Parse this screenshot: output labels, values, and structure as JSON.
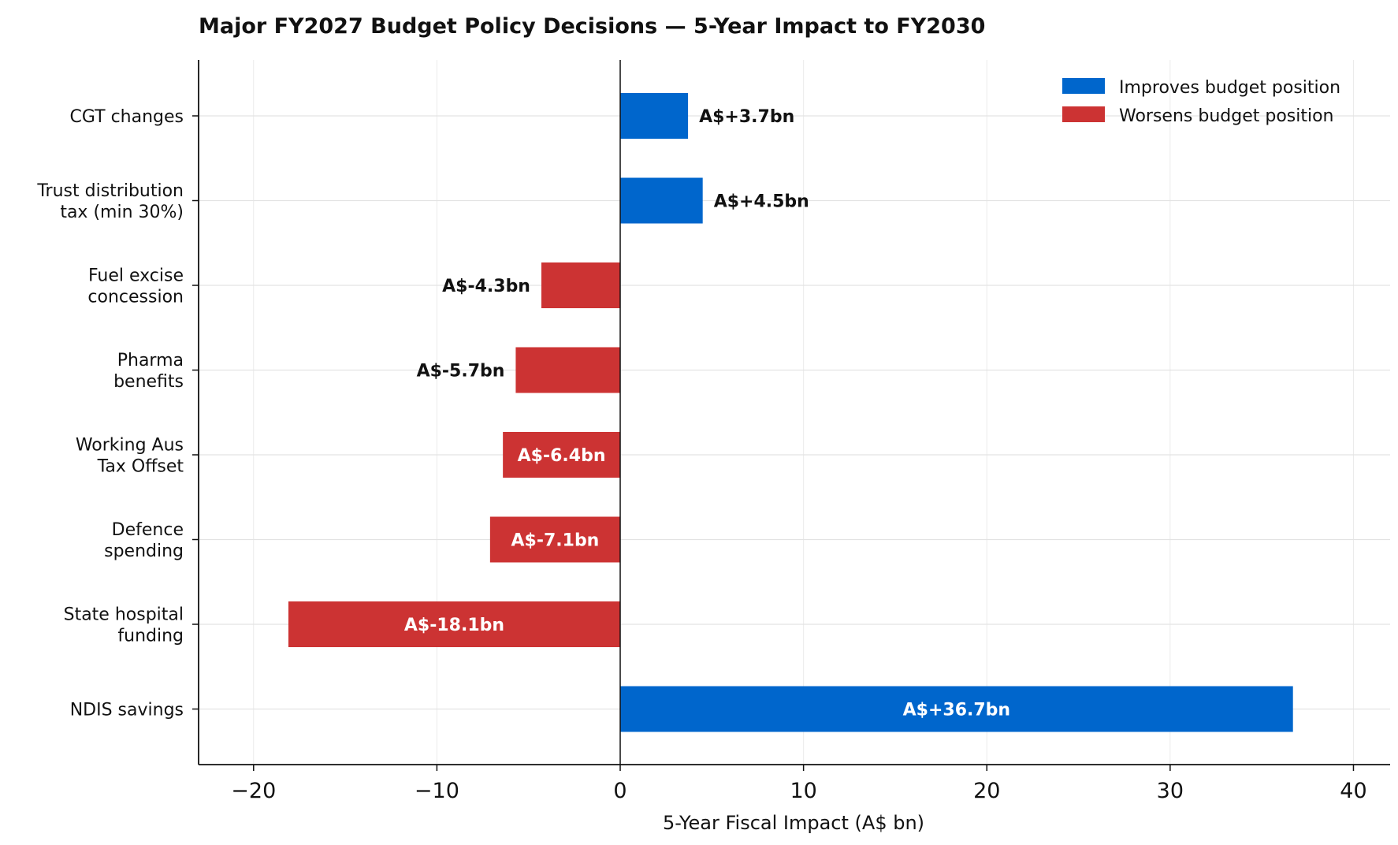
{
  "chart_data": {
    "type": "bar",
    "orientation": "horizontal",
    "title": "Major FY2027 Budget Policy Decisions — 5-Year Impact to FY2030",
    "xlabel": "5-Year Fiscal Impact (A$ bn)",
    "ylabel": "",
    "xlim": [
      -23,
      42
    ],
    "xticks": [
      -20,
      -10,
      0,
      10,
      20,
      30,
      40
    ],
    "xtick_labels": [
      "−20",
      "−10",
      "0",
      "10",
      "20",
      "30",
      "40"
    ],
    "grid": true,
    "legend_position": "top-right",
    "colors": {
      "improves": "#0066cc",
      "worsens": "#cc3333"
    },
    "legend": [
      {
        "key": "improves",
        "label": "Improves budget position"
      },
      {
        "key": "worsens",
        "label": "Worsens budget position"
      }
    ],
    "bars": [
      {
        "category": [
          "CGT changes"
        ],
        "value": 3.7,
        "label": "A$+3.7bn"
      },
      {
        "category": [
          "Trust distribution",
          "tax (min 30%)"
        ],
        "value": 4.5,
        "label": "A$+4.5bn"
      },
      {
        "category": [
          "Fuel excise",
          "concession"
        ],
        "value": -4.3,
        "label": "A$-4.3bn"
      },
      {
        "category": [
          "Pharma",
          "benefits"
        ],
        "value": -5.7,
        "label": "A$-5.7bn"
      },
      {
        "category": [
          "Working Aus",
          "Tax Offset"
        ],
        "value": -6.4,
        "label": "A$-6.4bn"
      },
      {
        "category": [
          "Defence",
          "spending"
        ],
        "value": -7.1,
        "label": "A$-7.1bn"
      },
      {
        "category": [
          "State hospital",
          "funding"
        ],
        "value": -18.1,
        "label": "A$-18.1bn"
      },
      {
        "category": [
          "NDIS savings"
        ],
        "value": 36.7,
        "label": "A$+36.7bn"
      }
    ]
  }
}
